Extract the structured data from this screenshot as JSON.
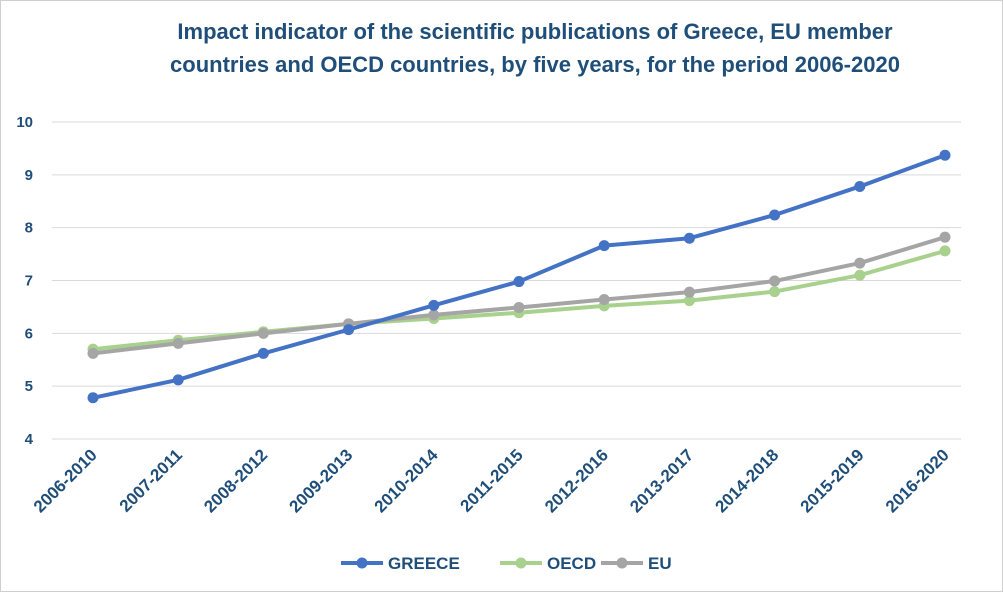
{
  "chart_data": {
    "type": "line",
    "title": "Impact indicator of the scientific publications of Greece, EU member countries and OECD countries, by five years, for the period 2006-2020",
    "title_lines": [
      "Impact indicator of the scientific publications of Greece, EU member",
      "countries and OECD countries, by five years, for the period 2006-2020"
    ],
    "categories": [
      "2006-2010",
      "2007-2011",
      "2008-2012",
      "2009-2013",
      "2010-2014",
      "2011-2015",
      "2012-2016",
      "2013-2017",
      "2014-2018",
      "2015-2019",
      "2016-2020"
    ],
    "series": [
      {
        "name": "GREECE",
        "color": "#4472c4",
        "values": [
          4.78,
          5.12,
          5.62,
          6.07,
          6.53,
          6.98,
          7.66,
          7.8,
          8.24,
          8.78,
          9.37
        ]
      },
      {
        "name": "OECD",
        "color": "#a9d18e",
        "values": [
          5.7,
          5.87,
          6.03,
          6.18,
          6.28,
          6.39,
          6.52,
          6.62,
          6.79,
          7.1,
          7.56
        ]
      },
      {
        "name": "EU",
        "color": "#a5a5a5",
        "values": [
          5.62,
          5.81,
          6.0,
          6.18,
          6.35,
          6.49,
          6.64,
          6.78,
          6.99,
          7.33,
          7.82
        ]
      }
    ],
    "ylim": [
      4,
      10
    ],
    "yticks": [
      4,
      5,
      6,
      7,
      8,
      9,
      10
    ],
    "xlabel": "",
    "ylabel": "",
    "grid": true,
    "legend": "bottom"
  }
}
